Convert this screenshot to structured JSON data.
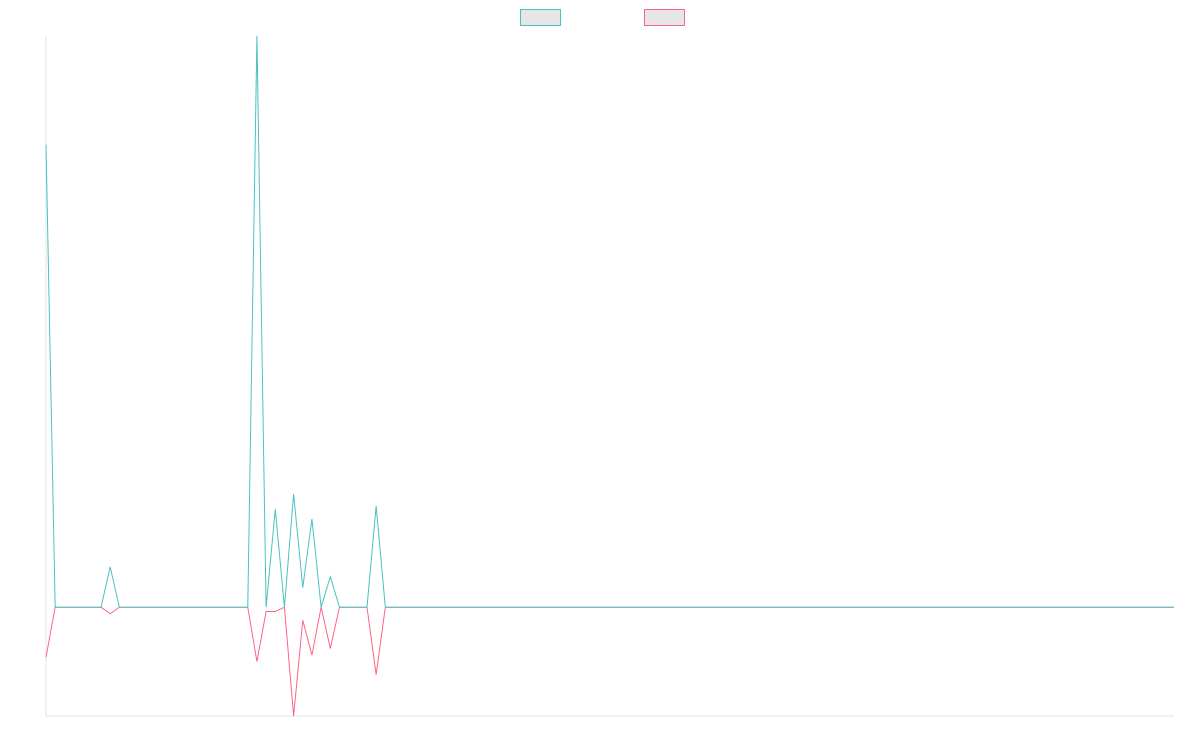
{
  "chart_data": {
    "type": "line",
    "title": "",
    "xlabel": "",
    "ylabel": "",
    "grid": false,
    "legend_position": "top-center",
    "ylim": [
      -1.0,
      5.25
    ],
    "series": [
      {
        "color": "#4bc0c0",
        "values": [
          4.25,
          0,
          0,
          0,
          0,
          0,
          0,
          0.37,
          0,
          0,
          0,
          0,
          0,
          0,
          0,
          0,
          0,
          0,
          0,
          0,
          0,
          0,
          0,
          5.25,
          0,
          0.9,
          0,
          1.04,
          0.18,
          0.81,
          0,
          0.28,
          0,
          0,
          0,
          0,
          0.93,
          0,
          0,
          0,
          0,
          0,
          0,
          0,
          0,
          0,
          0,
          0,
          0,
          0,
          0,
          0,
          0,
          0,
          0,
          0,
          0,
          0,
          0,
          0,
          0,
          0,
          0,
          0,
          0,
          0,
          0,
          0,
          0,
          0,
          0,
          0,
          0,
          0,
          0,
          0,
          0,
          0,
          0,
          0,
          0,
          0,
          0,
          0,
          0,
          0,
          0,
          0,
          0,
          0,
          0,
          0,
          0,
          0,
          0,
          0,
          0,
          0,
          0,
          0,
          0,
          0,
          0,
          0,
          0,
          0,
          0,
          0,
          0,
          0,
          0,
          0,
          0,
          0,
          0,
          0,
          0,
          0,
          0,
          0,
          0,
          0,
          0,
          0
        ]
      },
      {
        "color": "#ff6384",
        "values": [
          -0.46,
          0,
          0,
          0,
          0,
          0,
          0,
          -0.06,
          0,
          0,
          0,
          0,
          0,
          0,
          0,
          0,
          0,
          0,
          0,
          0,
          0,
          0,
          0,
          -0.5,
          -0.04,
          -0.04,
          0,
          -1.0,
          -0.12,
          -0.44,
          0,
          -0.38,
          0,
          0,
          0,
          0,
          -0.62,
          0,
          0,
          0,
          0,
          0,
          0,
          0,
          0,
          0,
          0,
          0,
          0,
          0,
          0,
          0,
          0,
          0,
          0,
          0,
          0,
          0,
          0,
          0,
          0,
          0,
          0,
          0,
          0,
          0,
          0,
          0,
          0,
          0,
          0,
          0,
          0,
          0,
          0,
          0,
          0,
          0,
          0,
          0,
          0,
          0,
          0,
          0,
          0,
          0,
          0,
          0,
          0,
          0,
          0,
          0,
          0,
          0,
          0,
          0,
          0,
          0,
          0,
          0,
          0,
          0,
          0,
          0,
          0,
          0,
          0,
          0,
          0,
          0,
          0,
          0,
          0,
          0,
          0,
          0,
          0,
          0,
          0,
          0,
          0,
          0,
          0,
          0
        ]
      }
    ]
  }
}
